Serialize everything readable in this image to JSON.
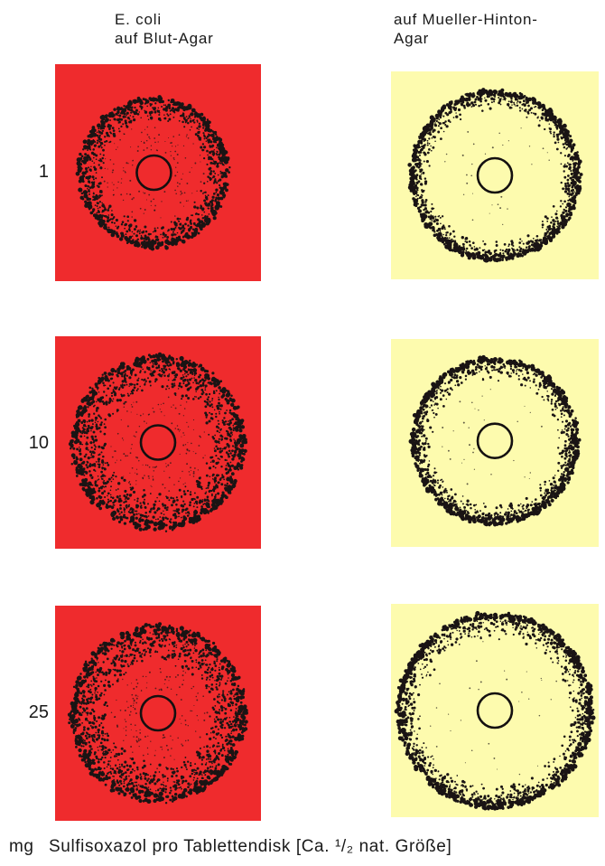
{
  "columns": [
    {
      "line1": "E. coli",
      "line2": "auf Blut-Agar",
      "background": "#ef2b2d",
      "inner": "#f52a2c",
      "type": "blood"
    },
    {
      "line1": "auf Mueller-Hinton-",
      "line2": "Agar",
      "background": "#fdfbae",
      "inner": "#fdfbae",
      "type": "mh"
    }
  ],
  "rows": [
    {
      "dose": "1"
    },
    {
      "dose": "10"
    },
    {
      "dose": "25"
    }
  ],
  "footer": {
    "unit": "mg",
    "caption": "Sulfisoxazol pro Tablettendisk [Ca. ¹/₂ nat. Größe]"
  },
  "colors": {
    "colony": "#1a1414",
    "disk": "#141010"
  }
}
